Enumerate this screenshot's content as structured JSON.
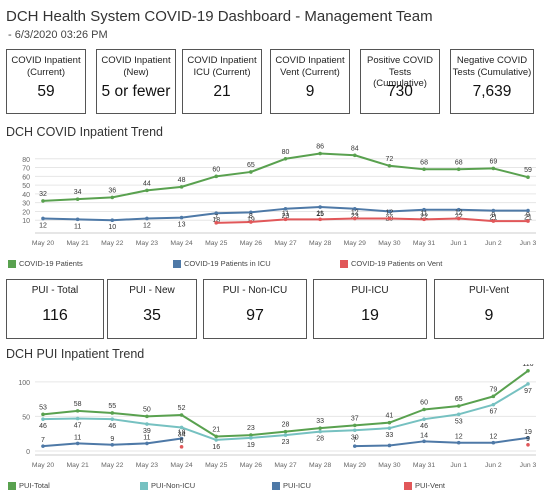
{
  "header": {
    "title": "DCH Health System COVID-19 Dashboard - Management Team",
    "subtitle": "- 6/3/2020 03:26 PM"
  },
  "kpis_top": [
    {
      "label": "COVID Inpatient (Current)",
      "value": "59"
    },
    {
      "label": "COVID Inpatient (New)",
      "value": "5 or fewer"
    },
    {
      "label": "COVID Inpatient ICU (Current)",
      "value": "21"
    },
    {
      "label": "COVID Inpatient Vent (Current)",
      "value": "9"
    },
    {
      "label": "Positive COVID Tests (Cumulative)",
      "value": "730"
    },
    {
      "label": "Negative COVID Tests (Cumulative)",
      "value": "7,639"
    }
  ],
  "kpis_pui": [
    {
      "label": "PUI - Total",
      "value": "116"
    },
    {
      "label": "PUI - New",
      "value": "35"
    },
    {
      "label": "PUI - Non-ICU",
      "value": "97"
    },
    {
      "label": "PUI-ICU",
      "value": "19"
    },
    {
      "label": "PUI-Vent",
      "value": "9"
    }
  ],
  "colors": {
    "green": "#59a14f",
    "blue": "#4e79a7",
    "red": "#e15759",
    "teal": "#76c1c1",
    "axis": "#888888",
    "grid": "#e6e6e6"
  },
  "chart_data": [
    {
      "type": "line",
      "title": "DCH COVID Inpatient Trend",
      "categories": [
        "May 20",
        "May 21",
        "May 22",
        "May 23",
        "May 24",
        "May 25",
        "May 26",
        "May 27",
        "May 28",
        "May 29",
        "May 30",
        "May 31",
        "Jun 1",
        "Jun 2",
        "Jun 3"
      ],
      "ylim": [
        0,
        90
      ],
      "yticks": [
        10,
        20,
        30,
        40,
        50,
        60,
        70,
        80
      ],
      "grid": true,
      "legend_position": "bottom",
      "series": [
        {
          "name": "COVID-19 Patients",
          "color": "#59a14f",
          "values": [
            32,
            34,
            36,
            44,
            48,
            60,
            65,
            80,
            86,
            84,
            72,
            68,
            68,
            69,
            59
          ],
          "labels": [
            "32",
            "34",
            "36",
            "44",
            "48",
            "60",
            "65",
            "80",
            "86",
            "84",
            "72",
            "68",
            "68",
            "69",
            "59"
          ]
        },
        {
          "name": "COVID-19 Patients in ICU",
          "color": "#4e79a7",
          "values": [
            12,
            11,
            10,
            12,
            13,
            18,
            19,
            23,
            25,
            23,
            20,
            22,
            22,
            21,
            21
          ],
          "labels": [
            "12",
            "11",
            "10",
            "12",
            "13",
            "18",
            "19",
            "23",
            "25",
            "23",
            "20",
            "22",
            "22",
            "21",
            "21"
          ]
        },
        {
          "name": "COVID-19 Patients on Vent",
          "color": "#e15759",
          "values": [
            null,
            null,
            null,
            null,
            null,
            7,
            8,
            11,
            11,
            12,
            12,
            11,
            12,
            9,
            9
          ],
          "labels": [
            "",
            "",
            "",
            "",
            "",
            "7",
            "8",
            "11",
            "11",
            "12",
            "12",
            "11",
            "12",
            "9",
            "9"
          ]
        }
      ]
    },
    {
      "type": "line",
      "title": "DCH PUI Inpatient Trend",
      "categories": [
        "May 20",
        "May 21",
        "May 22",
        "May 23",
        "May 24",
        "May 25",
        "May 26",
        "May 27",
        "May 28",
        "May 29",
        "May 30",
        "May 31",
        "Jun 1",
        "Jun 2",
        "Jun 3"
      ],
      "ylim": [
        0,
        120
      ],
      "yticks": [
        0,
        50,
        100
      ],
      "grid": true,
      "legend_position": "bottom",
      "series": [
        {
          "name": "PUI-Total",
          "color": "#59a14f",
          "values": [
            53,
            58,
            55,
            50,
            52,
            21,
            23,
            28,
            33,
            37,
            41,
            60,
            65,
            79,
            116
          ],
          "labels": [
            "53",
            "58",
            "55",
            "50",
            "52",
            "21",
            "23",
            "28",
            "33",
            "37",
            "41",
            "60",
            "65",
            "79",
            "116"
          ]
        },
        {
          "name": "PUI-Non-ICU",
          "color": "#76c1c1",
          "values": [
            46,
            47,
            46,
            39,
            34,
            16,
            19,
            23,
            28,
            30,
            33,
            46,
            53,
            67,
            97
          ],
          "labels": [
            "46",
            "47",
            "46",
            "39",
            "34",
            "16",
            "19",
            "23",
            "28",
            "30",
            "33",
            "46",
            "53",
            "67",
            "97"
          ]
        },
        {
          "name": "PUI-ICU",
          "color": "#4e79a7",
          "values": [
            7,
            11,
            9,
            11,
            18,
            null,
            null,
            null,
            null,
            7,
            8,
            14,
            12,
            12,
            19
          ],
          "labels": [
            "7",
            "11",
            "9",
            "11",
            "18",
            "",
            "",
            "",
            "",
            "7",
            "",
            "14",
            "12",
            "12",
            "19"
          ]
        },
        {
          "name": "PUI-Vent",
          "color": "#e15759",
          "values": [
            null,
            null,
            null,
            null,
            6,
            null,
            null,
            null,
            null,
            null,
            null,
            null,
            null,
            null,
            9
          ],
          "labels": [
            "",
            "",
            "",
            "",
            "6",
            "",
            "",
            "",
            "",
            "",
            "",
            "",
            "",
            "",
            "9"
          ]
        }
      ]
    }
  ]
}
